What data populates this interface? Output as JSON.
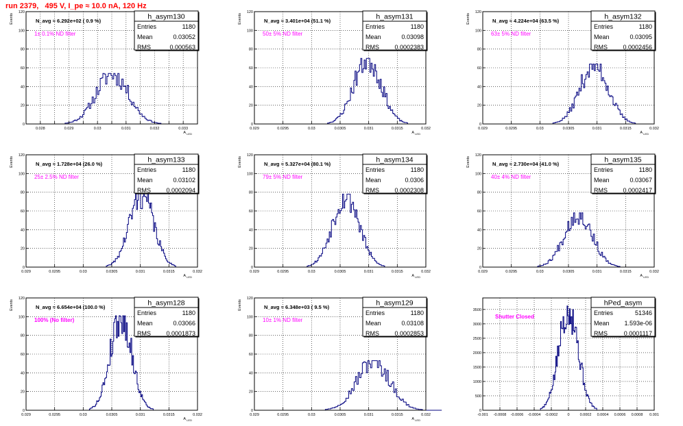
{
  "page": {
    "title": "run 2379,   495 V, I_pe ≈ 10.0 nA, 120 Hz"
  },
  "colors": {
    "title": "#ff0000",
    "histogram": "#00007f",
    "annotation": "#ff00ff",
    "grid": "#000000"
  },
  "chart_data": [
    {
      "type": "bar",
      "id": "p0",
      "name": "h_asym130",
      "navg": "N_avg = 6.292e+02 ( 0.9 %)",
      "filter": "1± 0.1% ND filter",
      "stats": [
        [
          "Entries",
          "1180"
        ],
        [
          "Mean",
          "0.03052"
        ],
        [
          "RMS",
          "0.000563"
        ]
      ],
      "xlim": [
        0.0275,
        0.0335
      ],
      "ylim": [
        0,
        120
      ],
      "xticks": [
        0.028,
        0.0285,
        0.029,
        0.0295,
        0.03,
        0.0305,
        0.031,
        0.0315,
        0.032,
        0.0325,
        0.033
      ],
      "xticklabels": [
        "0.028",
        "",
        "0.029",
        "",
        "0.03",
        "",
        "0.031",
        "",
        "0.032",
        "",
        "0.033"
      ],
      "yticks": [
        0,
        20,
        40,
        60,
        80,
        100,
        120
      ],
      "yticklabels": [
        "0",
        "20",
        "40",
        "60",
        "80",
        "100",
        "120"
      ],
      "xlabel": "A_LED",
      "ylabel": "Events",
      "peak": 54,
      "mu": 0.03052,
      "sigma": 0.000563,
      "seed": 11
    },
    {
      "type": "bar",
      "id": "p1",
      "name": "h_asym131",
      "navg": "N_avg = 3.401e+04 (51.1 %)",
      "filter": "50± 5% ND filter",
      "stats": [
        [
          "Entries",
          "1180"
        ],
        [
          "Mean",
          "0.03098"
        ],
        [
          "RMS",
          "0.0002383"
        ]
      ],
      "xlim": [
        0.029,
        0.032
      ],
      "ylim": [
        0,
        120
      ],
      "xticks": [
        0.029,
        0.0295,
        0.03,
        0.0305,
        0.031,
        0.0315,
        0.032
      ],
      "xticklabels": [
        "0.029",
        "0.0295",
        "0.03",
        "0.0305",
        "0.031",
        "0.0315",
        "0.032"
      ],
      "yticks": [
        0,
        20,
        40,
        60,
        80,
        100,
        120
      ],
      "yticklabels": [
        "0",
        "20",
        "40",
        "60",
        "80",
        "100",
        "120"
      ],
      "xlabel": "A_LED",
      "ylabel": "Events",
      "peak": 70,
      "mu": 0.03098,
      "sigma": 0.0002383,
      "seed": 23
    },
    {
      "type": "bar",
      "id": "p2",
      "name": "h_asym132",
      "navg": "N_avg = 4.224e+04 (63.5 %)",
      "filter": "63± 5% ND filter",
      "stats": [
        [
          "Entries",
          "1180"
        ],
        [
          "Mean",
          "0.03095"
        ],
        [
          "RMS",
          "0.0002456"
        ]
      ],
      "xlim": [
        0.029,
        0.032
      ],
      "ylim": [
        0,
        120
      ],
      "xticks": [
        0.029,
        0.0295,
        0.03,
        0.0305,
        0.031,
        0.0315,
        0.032
      ],
      "xticklabels": [
        "0.029",
        "0.0295",
        "0.03",
        "0.0305",
        "0.031",
        "0.0315",
        "0.032"
      ],
      "yticks": [
        0,
        20,
        40,
        60,
        80,
        100,
        120
      ],
      "yticklabels": [
        "0",
        "20",
        "40",
        "60",
        "80",
        "100",
        "120"
      ],
      "xlabel": "A_LED",
      "ylabel": "Events",
      "peak": 64,
      "mu": 0.03095,
      "sigma": 0.0002456,
      "seed": 37
    },
    {
      "type": "bar",
      "id": "p3",
      "name": "h_asym133",
      "navg": "N_avg = 1.728e+04 (26.0 %)",
      "filter": "25± 2.5% ND filter",
      "stats": [
        [
          "Entries",
          "1180"
        ],
        [
          "Mean",
          "0.03102"
        ],
        [
          "RMS",
          "0.0002094"
        ]
      ],
      "xlim": [
        0.029,
        0.032
      ],
      "ylim": [
        0,
        120
      ],
      "xticks": [
        0.029,
        0.0295,
        0.03,
        0.0305,
        0.031,
        0.0315,
        0.032
      ],
      "xticklabels": [
        "0.029",
        "0.0295",
        "0.03",
        "0.0305",
        "0.031",
        "0.0315",
        "0.032"
      ],
      "yticks": [
        0,
        20,
        40,
        60,
        80,
        100,
        120
      ],
      "yticklabels": [
        "0",
        "20",
        "40",
        "60",
        "80",
        "100",
        "120"
      ],
      "xlabel": "A_LED",
      "ylabel": "Events",
      "peak": 79,
      "mu": 0.03102,
      "sigma": 0.0002094,
      "seed": 41
    },
    {
      "type": "bar",
      "id": "p4",
      "name": "h_asym134",
      "navg": "N_avg = 5.327e+04 (80.1 %)",
      "filter": "79± 5% ND filter",
      "stats": [
        [
          "Entries",
          "1180"
        ],
        [
          "Mean",
          "0.0306"
        ],
        [
          "RMS",
          "0.0002308"
        ]
      ],
      "xlim": [
        0.029,
        0.032
      ],
      "ylim": [
        0,
        120
      ],
      "xticks": [
        0.029,
        0.0295,
        0.03,
        0.0305,
        0.031,
        0.0315,
        0.032
      ],
      "xticklabels": [
        "0.029",
        "0.0295",
        "0.03",
        "0.0305",
        "0.031",
        "0.0315",
        "0.032"
      ],
      "yticks": [
        0,
        20,
        40,
        60,
        80,
        100,
        120
      ],
      "yticklabels": [
        "0",
        "20",
        "40",
        "60",
        "80",
        "100",
        "120"
      ],
      "xlabel": "A_LED",
      "ylabel": "Events",
      "peak": 78,
      "mu": 0.0306,
      "sigma": 0.0002308,
      "seed": 53
    },
    {
      "type": "bar",
      "id": "p5",
      "name": "h_asym135",
      "navg": "N_avg = 2.730e+04 (41.0 %)",
      "filter": "40± 4% ND filter",
      "stats": [
        [
          "Entries",
          "1180"
        ],
        [
          "Mean",
          "0.03067"
        ],
        [
          "RMS",
          "0.0002417"
        ]
      ],
      "xlim": [
        0.029,
        0.032
      ],
      "ylim": [
        0,
        120
      ],
      "xticks": [
        0.029,
        0.0295,
        0.03,
        0.0305,
        0.031,
        0.0315,
        0.032
      ],
      "xticklabels": [
        "0.029",
        "0.0295",
        "0.03",
        "0.0305",
        "0.031",
        "0.0315",
        "0.032"
      ],
      "yticks": [
        0,
        20,
        40,
        60,
        80,
        100,
        120
      ],
      "yticklabels": [
        "0",
        "20",
        "40",
        "60",
        "80",
        "100",
        "120"
      ],
      "xlabel": "A_LED",
      "ylabel": "Events",
      "peak": 58,
      "mu": 0.03067,
      "sigma": 0.0002417,
      "seed": 67
    },
    {
      "type": "bar",
      "id": "p6",
      "name": "h_asym128",
      "navg": "N_avg = 6.654e+04 (100.0 %)",
      "filter": "100% (No filter)",
      "stats": [
        [
          "Entries",
          "1180"
        ],
        [
          "Mean",
          "0.03066"
        ],
        [
          "RMS",
          "0.0001873"
        ]
      ],
      "xlim": [
        0.029,
        0.032
      ],
      "ylim": [
        0,
        120
      ],
      "xticks": [
        0.029,
        0.0295,
        0.03,
        0.0305,
        0.031,
        0.0315,
        0.032
      ],
      "xticklabels": [
        "0.029",
        "0.0295",
        "0.03",
        "0.0305",
        "0.031",
        "0.0315",
        "0.032"
      ],
      "yticks": [
        0,
        20,
        40,
        60,
        80,
        100,
        120
      ],
      "yticklabels": [
        "0",
        "20",
        "40",
        "60",
        "80",
        "100",
        "120"
      ],
      "xlabel": "A_LED",
      "ylabel": "Events",
      "peak": 101,
      "mu": 0.03066,
      "sigma": 0.0001873,
      "seed": 79
    },
    {
      "type": "bar",
      "id": "p7",
      "name": "h_asym129",
      "navg": "N_avg = 6.348e+03 ( 9.5 %)",
      "filter": "10± 1% ND filter",
      "stats": [
        [
          "Entries",
          "1180"
        ],
        [
          "Mean",
          "0.03108"
        ],
        [
          "RMS",
          "0.0002853"
        ]
      ],
      "xlim": [
        0.029,
        0.032
      ],
      "ylim": [
        0,
        120
      ],
      "xticks": [
        0.029,
        0.0295,
        0.03,
        0.0305,
        0.031,
        0.0315,
        0.032
      ],
      "xticklabels": [
        "0.029",
        "0.0295",
        "0.03",
        "0.0305",
        "0.031",
        "0.0315",
        "0.032"
      ],
      "yticks": [
        0,
        20,
        40,
        60,
        80,
        100,
        120
      ],
      "yticklabels": [
        "0",
        "20",
        "40",
        "60",
        "80",
        "100",
        "120"
      ],
      "xlabel": "A_LED",
      "ylabel": "Events",
      "peak": 53,
      "mu": 0.03108,
      "sigma": 0.0002853,
      "seed": 97
    },
    {
      "type": "bar",
      "id": "p8",
      "name": "hPed_asym",
      "navg": "",
      "filter": "Shutter Closed",
      "stats": [
        [
          "Entries",
          "51346"
        ],
        [
          "Mean",
          "1.593e-06"
        ],
        [
          "RMS",
          "0.0001117"
        ]
      ],
      "xlim": [
        -0.001,
        0.001
      ],
      "ylim": [
        0,
        3900
      ],
      "xticks": [
        -0.001,
        -0.0008,
        -0.0006,
        -0.0004,
        -0.0002,
        0,
        0.0002,
        0.0004,
        0.0006,
        0.0008,
        0.001
      ],
      "xticklabels": [
        "-0.001",
        "-0.0008",
        "-0.0006",
        "-0.0004",
        "-0.0002",
        "0",
        "0.0002",
        "0.0004",
        "0.0006",
        "0.0008",
        "0.001"
      ],
      "yticks": [
        0,
        500,
        1000,
        1500,
        2000,
        2500,
        3000,
        3500
      ],
      "yticklabels": [
        "0",
        "500",
        "1000",
        "1500",
        "2000",
        "2500",
        "3000",
        "3500"
      ],
      "xlabel": "",
      "ylabel": "",
      "peak": 3620,
      "mu": 1.6e-06,
      "sigma": 0.0001117,
      "seed": 5
    }
  ]
}
